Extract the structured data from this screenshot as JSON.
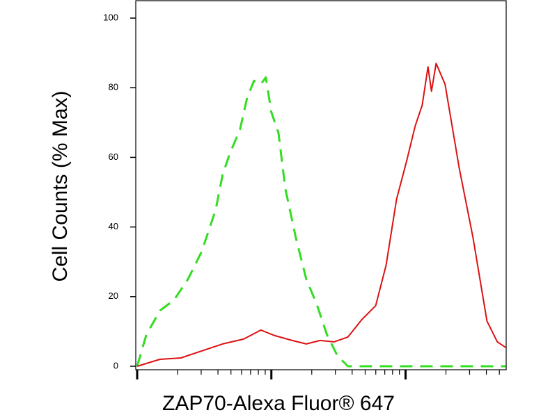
{
  "chart_data": {
    "type": "line",
    "xlabel": "ZAP70-Alexa Fluor® 647",
    "ylabel": "Cell Counts (% Max)",
    "xscale": "log",
    "xlim": [
      1,
      562
    ],
    "xticks": [
      1,
      10,
      100
    ],
    "xminorticks": [
      2,
      3,
      4,
      5,
      6,
      7,
      8,
      9,
      20,
      30,
      40,
      50,
      60,
      70,
      80,
      90,
      200,
      300,
      400,
      500
    ],
    "ylim": [
      -1,
      105
    ],
    "yticks": [
      0,
      20,
      40,
      60,
      80,
      100
    ],
    "series": [
      {
        "color": "#33dd22",
        "dash": true,
        "x": [
          1,
          1.17,
          1.48,
          1.88,
          2.39,
          3.03,
          3.85,
          4.33,
          4.89,
          5.84,
          6.59,
          7.42,
          8.36,
          9.09,
          10,
          11.3,
          12.7,
          15.2,
          18.2,
          21.7,
          26.0,
          31.1,
          37.2,
          557
        ],
        "values": [
          0,
          9,
          16,
          19,
          25,
          33,
          45,
          55,
          61,
          68,
          77,
          82,
          81,
          83,
          73,
          67,
          51,
          37,
          25,
          18,
          9,
          3,
          0,
          0
        ]
      },
      {
        "color": "#dd1111",
        "dash": false,
        "x": [
          1,
          1.48,
          2.12,
          3.03,
          4.33,
          6.21,
          8.36,
          10.6,
          14.3,
          18.2,
          23.1,
          29.3,
          37.2,
          47.2,
          59.9,
          71.6,
          85.7,
          102,
          118,
          133,
          147,
          156,
          169,
          197,
          251,
          318,
          404,
          483,
          557
        ],
        "values": [
          0,
          2,
          2.4,
          4.4,
          6.4,
          7.8,
          10.4,
          8.8,
          7.4,
          6.4,
          7.4,
          7,
          8.4,
          13.4,
          17.4,
          29,
          48,
          59,
          69,
          75,
          86,
          79,
          87,
          81,
          57,
          37,
          13,
          7,
          5.4
        ]
      }
    ]
  }
}
